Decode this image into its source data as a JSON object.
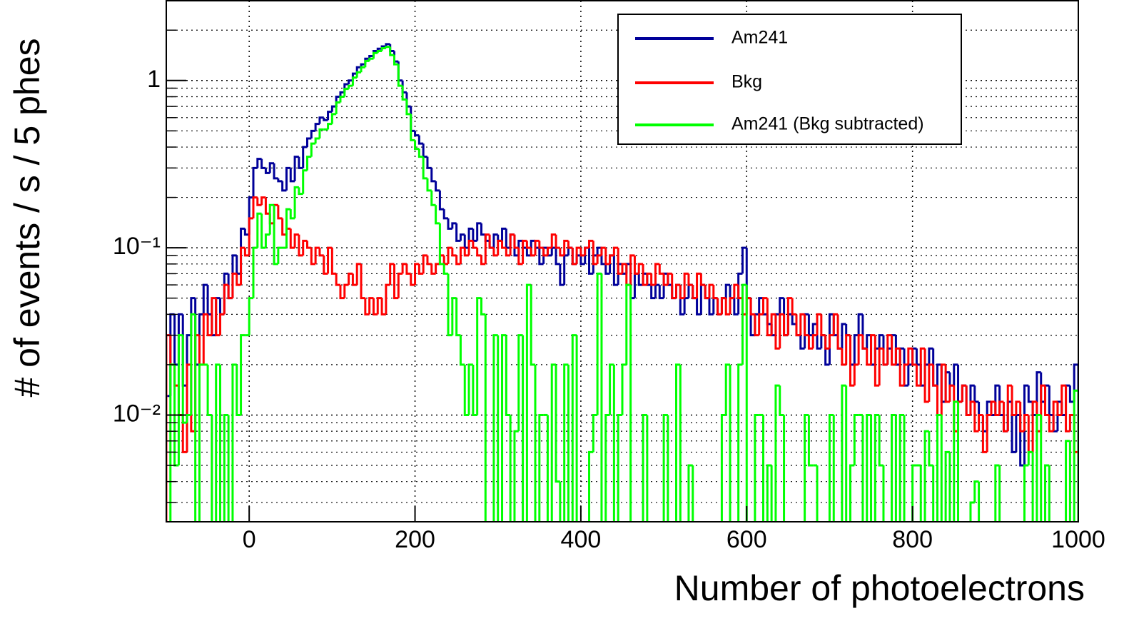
{
  "chart_data": {
    "type": "histogram",
    "x_label": "Number of photoelectrons",
    "y_label": "# of events / s / 5 phes",
    "xlim": [
      -100,
      1000
    ],
    "xticks": [
      0,
      200,
      400,
      600,
      800,
      1000
    ],
    "ylim": [
      0.0023,
      3.0
    ],
    "log_y": true,
    "yticks": [
      {
        "value": 0.01,
        "label": "10⁻²"
      },
      {
        "value": 0.1,
        "label": "10⁻¹"
      },
      1
    ],
    "grid": true,
    "legend": "top-right",
    "bins": [
      -100,
      -95,
      -90,
      -85,
      -80,
      -75,
      -70,
      -65,
      -60,
      -55,
      -50,
      -45,
      -40,
      -35,
      -30,
      -25,
      -20,
      -15,
      -10,
      -5,
      0,
      5,
      10,
      15,
      20,
      25,
      30,
      35,
      40,
      45,
      50,
      55,
      60,
      65,
      70,
      75,
      80,
      85,
      90,
      95,
      100,
      105,
      110,
      115,
      120,
      125,
      130,
      135,
      140,
      145,
      150,
      155,
      160,
      165,
      170,
      175,
      180,
      185,
      190,
      195,
      200,
      205,
      210,
      215,
      220,
      225,
      230,
      235,
      240,
      245,
      250,
      255,
      260,
      265,
      270,
      275,
      280,
      285,
      290,
      295,
      300,
      305,
      310,
      315,
      320,
      325,
      330,
      335,
      340,
      345,
      350,
      355,
      360,
      365,
      370,
      375,
      380,
      385,
      390,
      395,
      400,
      405,
      410,
      415,
      420,
      425,
      430,
      435,
      440,
      445,
      450,
      455,
      460,
      465,
      470,
      475,
      480,
      485,
      490,
      495,
      500,
      505,
      510,
      515,
      520,
      525,
      530,
      535,
      540,
      545,
      550,
      555,
      560,
      565,
      570,
      575,
      580,
      585,
      590,
      595,
      600,
      605,
      610,
      615,
      620,
      625,
      630,
      635,
      640,
      645,
      650,
      655,
      660,
      665,
      670,
      675,
      680,
      685,
      690,
      695,
      700,
      705,
      710,
      715,
      720,
      725,
      730,
      735,
      740,
      745,
      750,
      755,
      760,
      765,
      770,
      775,
      780,
      785,
      790,
      795,
      800,
      805,
      810,
      815,
      820,
      825,
      830,
      835,
      840,
      845,
      850,
      855,
      860,
      865,
      870,
      875,
      880,
      885,
      890,
      895,
      900,
      905,
      910,
      915,
      920,
      925,
      930,
      935,
      940,
      945,
      950,
      955,
      960,
      965,
      970,
      975,
      980,
      985,
      990,
      995,
      1000
    ],
    "series": [
      {
        "name": "Am241",
        "color": "#000099",
        "values": [
          0.013,
          0.04,
          0.02,
          0.04,
          0.015,
          0.03,
          0.05,
          0.02,
          0.04,
          0.06,
          0.04,
          0.03,
          0.05,
          0.04,
          0.07,
          0.05,
          0.09,
          0.07,
          0.13,
          0.12,
          0.2,
          0.3,
          0.34,
          0.3,
          0.28,
          0.32,
          0.26,
          0.25,
          0.22,
          0.3,
          0.25,
          0.35,
          0.3,
          0.4,
          0.45,
          0.5,
          0.55,
          0.6,
          0.58,
          0.65,
          0.7,
          0.8,
          0.85,
          0.95,
          1.0,
          1.1,
          1.2,
          1.25,
          1.35,
          1.4,
          1.5,
          1.55,
          1.6,
          1.65,
          1.5,
          1.3,
          1.0,
          0.85,
          0.7,
          0.5,
          0.47,
          0.42,
          0.35,
          0.3,
          0.25,
          0.22,
          0.17,
          0.15,
          0.13,
          0.14,
          0.11,
          0.12,
          0.1,
          0.13,
          0.11,
          0.14,
          0.12,
          0.11,
          0.1,
          0.12,
          0.11,
          0.13,
          0.1,
          0.12,
          0.09,
          0.11,
          0.1,
          0.09,
          0.11,
          0.1,
          0.08,
          0.1,
          0.09,
          0.1,
          0.08,
          0.06,
          0.09,
          0.1,
          0.08,
          0.09,
          0.08,
          0.1,
          0.07,
          0.09,
          0.1,
          0.08,
          0.07,
          0.09,
          0.06,
          0.08,
          0.07,
          0.08,
          0.05,
          0.07,
          0.06,
          0.07,
          0.06,
          0.05,
          0.06,
          0.05,
          0.07,
          0.06,
          0.05,
          0.06,
          0.04,
          0.05,
          0.06,
          0.05,
          0.04,
          0.06,
          0.05,
          0.04,
          0.05,
          0.04,
          0.05,
          0.06,
          0.05,
          0.04,
          0.07,
          0.1,
          0.05,
          0.03,
          0.04,
          0.05,
          0.04,
          0.035,
          0.03,
          0.04,
          0.05,
          0.03,
          0.04,
          0.035,
          0.03,
          0.025,
          0.04,
          0.03,
          0.035,
          0.025,
          0.03,
          0.02,
          0.04,
          0.03,
          0.025,
          0.035,
          0.03,
          0.02,
          0.03,
          0.04,
          0.025,
          0.03,
          0.02,
          0.025,
          0.03,
          0.02,
          0.025,
          0.03,
          0.02,
          0.025,
          0.015,
          0.02,
          0.025,
          0.02,
          0.015,
          0.02,
          0.025,
          0.015,
          0.02,
          0.012,
          0.018,
          0.015,
          0.02,
          0.012,
          0.015,
          0.01,
          0.015,
          0.012,
          0.01,
          0.008,
          0.012,
          0.01,
          0.015,
          0.01,
          0.008,
          0.012,
          0.006,
          0.01,
          0.005,
          0.015,
          0.012,
          0.01,
          0.018,
          0.012,
          0.015,
          0.01,
          0.008,
          0.012,
          0.01,
          0.015,
          0.012,
          0.02
        ]
      },
      {
        "name": "Bkg",
        "color": "#ff0000",
        "values": [
          0.03,
          0.02,
          0.015,
          0.01,
          0.006,
          0.02,
          0.008,
          0.03,
          0.02,
          0.04,
          0.03,
          0.05,
          0.03,
          0.04,
          0.06,
          0.05,
          0.07,
          0.06,
          0.1,
          0.09,
          0.15,
          0.2,
          0.18,
          0.2,
          0.16,
          0.14,
          0.18,
          0.15,
          0.12,
          0.13,
          0.1,
          0.12,
          0.09,
          0.11,
          0.1,
          0.08,
          0.1,
          0.09,
          0.07,
          0.1,
          0.07,
          0.06,
          0.05,
          0.06,
          0.07,
          0.06,
          0.08,
          0.05,
          0.04,
          0.05,
          0.04,
          0.05,
          0.04,
          0.06,
          0.08,
          0.05,
          0.07,
          0.08,
          0.07,
          0.06,
          0.08,
          0.07,
          0.09,
          0.08,
          0.07,
          0.08,
          0.09,
          0.08,
          0.1,
          0.09,
          0.08,
          0.1,
          0.09,
          0.11,
          0.1,
          0.09,
          0.08,
          0.12,
          0.1,
          0.09,
          0.11,
          0.1,
          0.09,
          0.12,
          0.1,
          0.08,
          0.11,
          0.1,
          0.09,
          0.11,
          0.1,
          0.09,
          0.1,
          0.12,
          0.1,
          0.09,
          0.11,
          0.1,
          0.08,
          0.1,
          0.09,
          0.1,
          0.11,
          0.08,
          0.09,
          0.1,
          0.08,
          0.09,
          0.1,
          0.07,
          0.08,
          0.06,
          0.09,
          0.07,
          0.08,
          0.06,
          0.07,
          0.06,
          0.08,
          0.07,
          0.06,
          0.07,
          0.05,
          0.06,
          0.05,
          0.07,
          0.06,
          0.05,
          0.07,
          0.06,
          0.05,
          0.06,
          0.05,
          0.04,
          0.05,
          0.04,
          0.05,
          0.06,
          0.05,
          0.04,
          0.05,
          0.04,
          0.03,
          0.04,
          0.05,
          0.03,
          0.04,
          0.025,
          0.04,
          0.03,
          0.05,
          0.04,
          0.03,
          0.04,
          0.03,
          0.025,
          0.03,
          0.04,
          0.03,
          0.025,
          0.03,
          0.04,
          0.025,
          0.02,
          0.03,
          0.015,
          0.02,
          0.03,
          0.025,
          0.02,
          0.03,
          0.015,
          0.025,
          0.02,
          0.03,
          0.02,
          0.025,
          0.015,
          0.02,
          0.025,
          0.02,
          0.015,
          0.025,
          0.012,
          0.02,
          0.015,
          0.01,
          0.02,
          0.012,
          0.015,
          0.008,
          0.012,
          0.015,
          0.01,
          0.012,
          0.008,
          0.01,
          0.006,
          0.01,
          0.012,
          0.01,
          0.012,
          0.008,
          0.015,
          0.01,
          0.012,
          0.008,
          0.01,
          0.006,
          0.012,
          0.008,
          0.015,
          0.01,
          0.008,
          0.012,
          0.01,
          0.015,
          0.008,
          0.01,
          0.006
        ]
      },
      {
        "name": "Am241 (Bkg subtracted)",
        "color": "#00ff00",
        "values": [
          0,
          0.02,
          0.005,
          0.03,
          0.009,
          0.01,
          0.04,
          0,
          0.02,
          0.02,
          0.01,
          0,
          0.02,
          0,
          0.01,
          0,
          0.02,
          0.01,
          0.03,
          0.03,
          0.05,
          0.1,
          0.16,
          0.1,
          0.12,
          0.18,
          0.08,
          0.1,
          0.1,
          0.17,
          0.15,
          0.23,
          0.21,
          0.29,
          0.35,
          0.42,
          0.45,
          0.51,
          0.51,
          0.55,
          0.63,
          0.74,
          0.8,
          0.89,
          0.93,
          1.04,
          1.12,
          1.2,
          1.31,
          1.35,
          1.46,
          1.5,
          1.56,
          1.59,
          1.42,
          1.25,
          0.93,
          0.77,
          0.63,
          0.44,
          0.39,
          0.35,
          0.26,
          0.22,
          0.18,
          0.14,
          0.08,
          0.07,
          0.03,
          0.05,
          0.03,
          0.02,
          0.01,
          0.02,
          0.01,
          0.05,
          0.04,
          0,
          0,
          0.03,
          0,
          0.03,
          0.01,
          0,
          0.008,
          0.03,
          0,
          0.06,
          0.02,
          0,
          0.01,
          0.01,
          0,
          0.02,
          0.004,
          0,
          0.02,
          0,
          0.03,
          0,
          0,
          0,
          0.006,
          0.01,
          0.07,
          0,
          0.01,
          0.02,
          0,
          0.01,
          0.02,
          0.06,
          0,
          0,
          0,
          0.01,
          0,
          0,
          0,
          0,
          0.01,
          0,
          0,
          0.02,
          0,
          0,
          0.005,
          0,
          0,
          0,
          0,
          0,
          0,
          0,
          0.01,
          0.02,
          0,
          0,
          0.02,
          0.06,
          0,
          0,
          0.01,
          0.01,
          0,
          0.005,
          0,
          0.015,
          0.01,
          0,
          0,
          0,
          0,
          0,
          0.01,
          0.005,
          0.005,
          0,
          0,
          0,
          0.01,
          0,
          0,
          0.015,
          0,
          0.005,
          0.01,
          0.01,
          0,
          0.01,
          0,
          0.01,
          0.005,
          0,
          0,
          0.01,
          0,
          0.01,
          0,
          0,
          0.005,
          0.005,
          0,
          0.008,
          0.005,
          0,
          0.01,
          0,
          0.006,
          0,
          0.012,
          0,
          0,
          0,
          0.003,
          0.004,
          0,
          0.002,
          0.002,
          0,
          0.005,
          0,
          0,
          0,
          0,
          0,
          0,
          0.005,
          0.006,
          0,
          0.01,
          0,
          0.005,
          0.002,
          0,
          0.002,
          0,
          0.007,
          0.002,
          0.014
        ]
      }
    ]
  }
}
